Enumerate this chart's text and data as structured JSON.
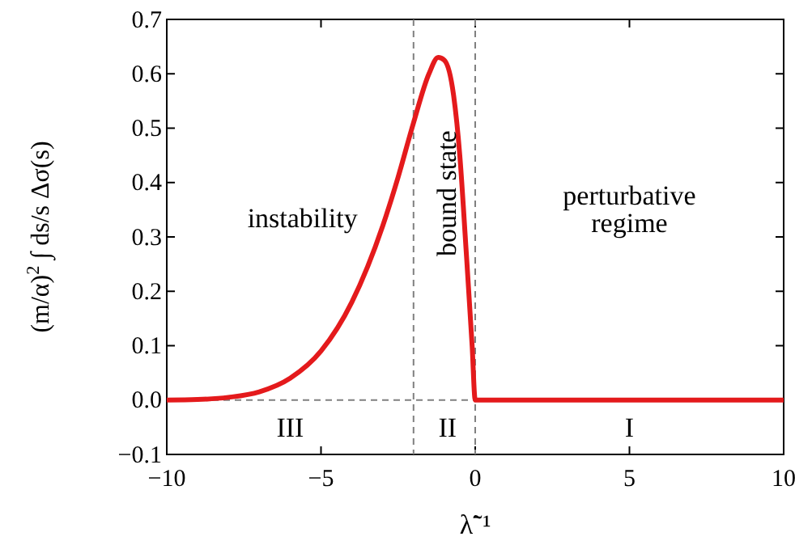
{
  "chart_data": {
    "type": "line",
    "xlabel": "λ̃⁻¹",
    "ylabel": "(m/α)$^{2}$ ∫ ds/s Δσ(s)",
    "x": [
      -10,
      -9,
      -8,
      -7,
      -6,
      -5,
      -4,
      -3,
      -2.5,
      -2,
      -1.5,
      -1.2,
      -1,
      -0.7,
      -0.5,
      -0.3,
      -0.1,
      0,
      2,
      4,
      6,
      8,
      10
    ],
    "series": [
      {
        "color": "#e41a1c",
        "values": [
          0,
          0.001,
          0.005,
          0.015,
          0.04,
          0.09,
          0.18,
          0.32,
          0.41,
          0.51,
          0.6,
          0.63,
          0.625,
          0.56,
          0.45,
          0.28,
          0.1,
          0,
          0,
          0,
          0,
          0,
          0
        ]
      }
    ],
    "xlim": [
      -10,
      10
    ],
    "xticks": [
      -10,
      -5,
      0,
      5,
      10
    ],
    "ylim": [
      -0.1,
      0.7
    ],
    "yticks": [
      -0.1,
      {
        "value": 0,
        "label": "0.0"
      },
      0.1,
      0.2,
      0.3,
      0.4,
      0.5,
      0.6,
      0.7
    ],
    "ref_lines": [
      {
        "axis": "x",
        "value": -2,
        "line_style": "dashed",
        "color": "#808080"
      },
      {
        "axis": "x",
        "value": 0,
        "line_style": "dashed",
        "color": "#808080"
      },
      {
        "axis": "y",
        "value": 0,
        "line_style": "dashed",
        "color": "#808080"
      }
    ],
    "annotations": [
      "instability",
      "bound state",
      "perturbative regime",
      "III",
      "II",
      "I"
    ],
    "line_style": "solid",
    "marker": "none"
  }
}
